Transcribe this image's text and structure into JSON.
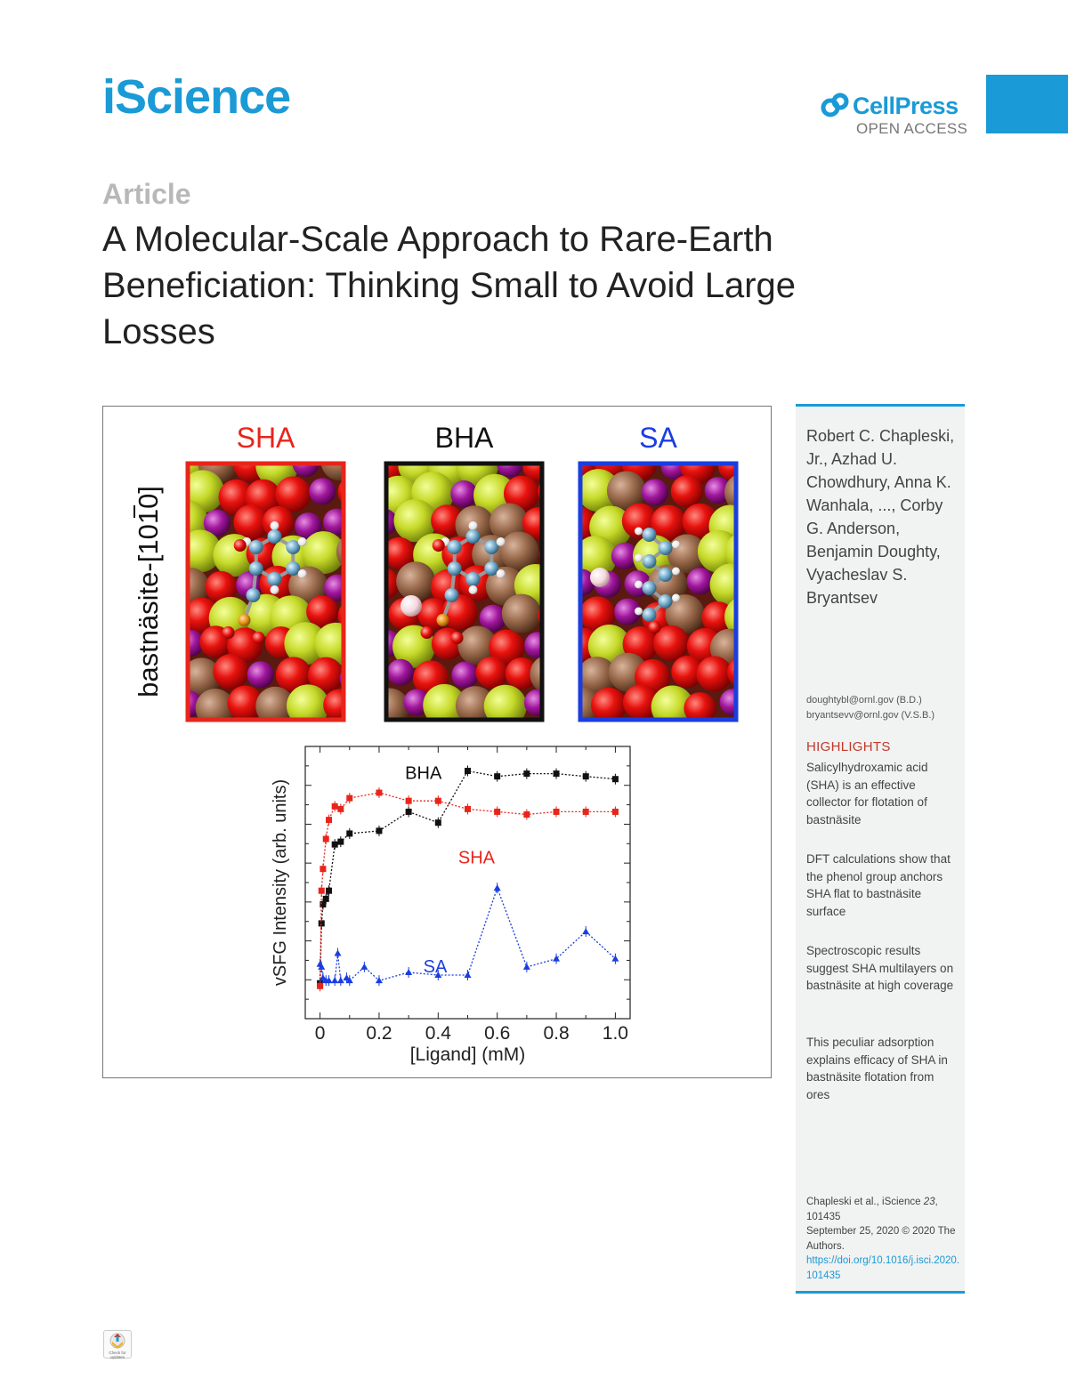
{
  "header": {
    "journal": "iScience",
    "publisher": "CellPress",
    "publisher_sub": "OPEN ACCESS"
  },
  "article": {
    "type_label": "Article",
    "title": "A Molecular-Scale Approach to Rare-Earth Beneficiation: Thinking Small to Avoid Large Losses"
  },
  "graphical_abstract": {
    "panels": [
      {
        "label": "SHA",
        "color": "#e8251b"
      },
      {
        "label": "BHA",
        "color": "#111111"
      },
      {
        "label": "SA",
        "color": "#1a3de0"
      }
    ],
    "surface_label": "bastnäsite-[1010]",
    "colors": {
      "oxygen": "#e8120e",
      "carbon": "#9a6a4c",
      "fluorine": "#c5d928",
      "lanthanum": "#a0169c",
      "ligand_carbon": "#6fa9c9",
      "hydrogen": "#f2f2f2",
      "phosphorus": "#e7921c"
    }
  },
  "chart_data": {
    "type": "scatter",
    "xlabel": "[Ligand] (mM)",
    "ylabel": "vSFG Intensity (arb. units)",
    "xlim": [
      -0.05,
      1.05
    ],
    "ylim": [
      0,
      1
    ],
    "xticks": [
      "0",
      "0.2",
      "0.4",
      "0.6",
      "0.8",
      "1.0"
    ],
    "xtick_values": [
      0,
      0.2,
      0.4,
      0.6,
      0.8,
      1.0
    ],
    "series": [
      {
        "name": "BHA",
        "color": "#111111",
        "marker": "square",
        "x": [
          0,
          0.005,
          0.01,
          0.02,
          0.03,
          0.05,
          0.07,
          0.1,
          0.2,
          0.3,
          0.4,
          0.5,
          0.6,
          0.7,
          0.8,
          0.9,
          1.0
        ],
        "y": [
          0.13,
          0.35,
          0.42,
          0.44,
          0.47,
          0.64,
          0.65,
          0.68,
          0.69,
          0.76,
          0.72,
          0.91,
          0.89,
          0.9,
          0.9,
          0.89,
          0.88
        ]
      },
      {
        "name": "SHA",
        "color": "#e8251b",
        "marker": "square",
        "x": [
          0,
          0.005,
          0.01,
          0.02,
          0.03,
          0.05,
          0.07,
          0.1,
          0.2,
          0.3,
          0.4,
          0.5,
          0.6,
          0.7,
          0.8,
          0.9,
          1.0
        ],
        "y": [
          0.12,
          0.47,
          0.55,
          0.66,
          0.73,
          0.78,
          0.77,
          0.81,
          0.83,
          0.8,
          0.8,
          0.77,
          0.76,
          0.75,
          0.76,
          0.76,
          0.76
        ]
      },
      {
        "name": "SA",
        "color": "#1a3de0",
        "marker": "triangle",
        "x": [
          0,
          0.005,
          0.01,
          0.02,
          0.03,
          0.05,
          0.06,
          0.07,
          0.09,
          0.1,
          0.15,
          0.2,
          0.3,
          0.4,
          0.5,
          0.6,
          0.7,
          0.8,
          0.9,
          1.0
        ],
        "y": [
          0.2,
          0.19,
          0.15,
          0.14,
          0.14,
          0.14,
          0.24,
          0.14,
          0.15,
          0.14,
          0.19,
          0.14,
          0.17,
          0.16,
          0.16,
          0.48,
          0.19,
          0.22,
          0.32,
          0.22
        ]
      }
    ],
    "annotations": [
      {
        "text": "BHA",
        "color": "#111111"
      },
      {
        "text": "SHA",
        "color": "#e8251b"
      },
      {
        "text": "SA",
        "color": "#1a3de0"
      }
    ]
  },
  "sidebar": {
    "authors": "Robert C. Chapleski, Jr., Azhad U. Chowdhury, Anna K. Wanhala, ..., Corby G. Anderson, Benjamin Doughty, Vyacheslav S. Bryantsev",
    "emails": [
      "doughtybl@ornl.gov (B.D.)",
      "bryantsevv@ornl.gov (V.S.B.)"
    ],
    "highlights_heading": "HIGHLIGHTS",
    "highlights": [
      "Salicylhydroxamic acid (SHA) is an effective collector for flotation of bastnäsite",
      "DFT calculations show that the phenol group anchors SHA flat to bastnäsite surface",
      "Spectroscopic results suggest SHA multilayers on bastnäsite at high coverage",
      "This peculiar adsorption explains efficacy of SHA in bastnäsite flotation from ores"
    ],
    "citation_authors": "Chapleski et al., iScience ",
    "citation_volume": "23",
    "citation_article": ", 101435",
    "citation_date": "September 25, 2020 © 2020 The Authors.",
    "doi": "https://doi.org/10.1016/j.isci.2020.101435"
  },
  "footer": {
    "crossmark_text": "Check for updates"
  }
}
